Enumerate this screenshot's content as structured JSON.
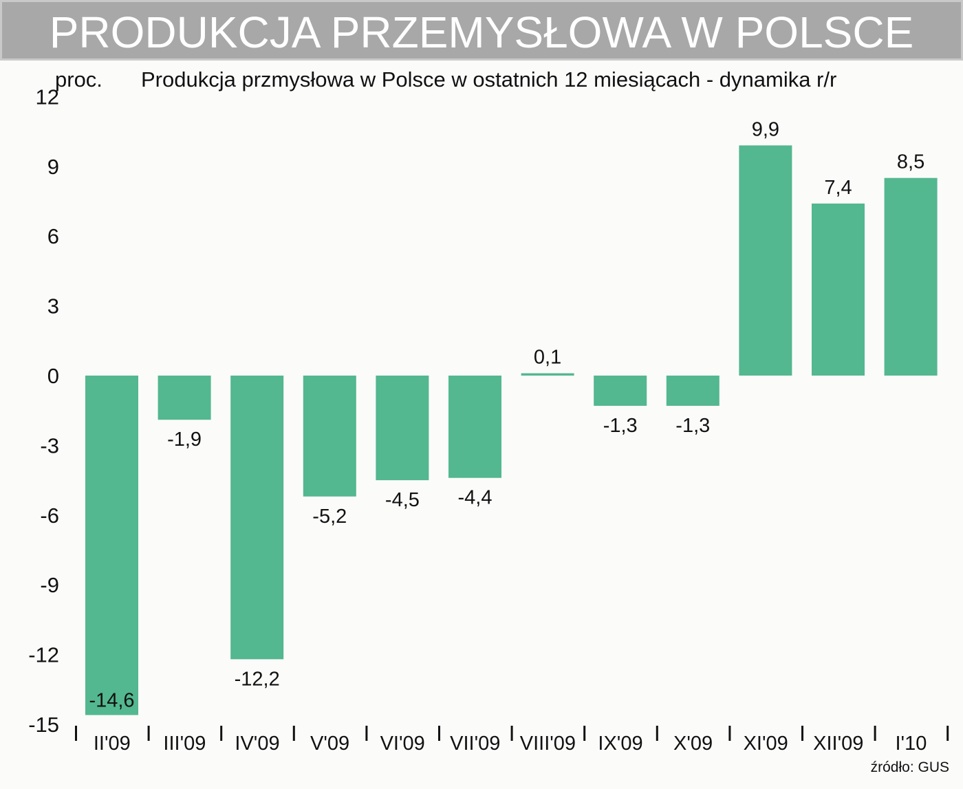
{
  "header": {
    "title": "PRODUKCJA PRZEMYSŁOWA W POLSCE",
    "unit": "proc.",
    "subtitle": "Produkcja przmysłowa w Polsce w ostatnich 12 miesiącach - dynamika r/r"
  },
  "footer": {
    "source": "źródło: GUS"
  },
  "colors": {
    "bar": "#53b78f",
    "banner": "#a8a8a8",
    "text": "#111111"
  },
  "chart_data": {
    "type": "bar",
    "title": "Produkcja przmysłowa w Polsce w ostatnich 12 miesiącach - dynamika r/r",
    "ylabel": "proc.",
    "xlabel": "",
    "categories": [
      "II'09",
      "III'09",
      "IV'09",
      "V'09",
      "VI'09",
      "VII'09",
      "VIII'09",
      "IX'09",
      "X'09",
      "XI'09",
      "XII'09",
      "I'10"
    ],
    "values": [
      -14.6,
      -1.9,
      -12.2,
      -5.2,
      -4.5,
      -4.4,
      0.1,
      -1.3,
      -1.3,
      9.9,
      7.4,
      8.5
    ],
    "value_labels": [
      "-14,6",
      "-1,9",
      "-12,2",
      "-5,2",
      "-4,5",
      "-4,4",
      "0,1",
      "-1,3",
      "-1,3",
      "9,9",
      "7,4",
      "8,5"
    ],
    "yticks": [
      12,
      9,
      6,
      3,
      0,
      -3,
      -6,
      -9,
      -12,
      -15
    ],
    "ylim": [
      -15,
      12
    ],
    "grid": false,
    "legend": "none"
  }
}
